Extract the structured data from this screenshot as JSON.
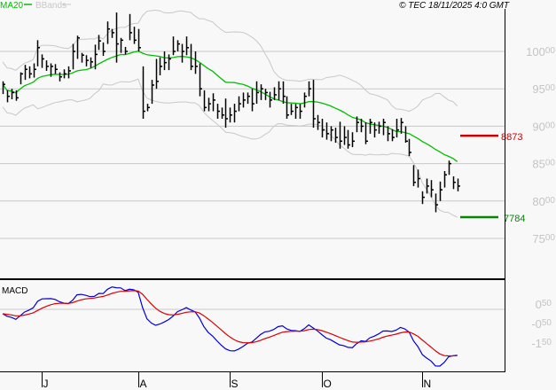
{
  "header": {
    "legend": [
      {
        "label": "MA20",
        "color": "#00c000"
      },
      {
        "label": "BBands",
        "color": "#c8c8c8"
      }
    ],
    "copyright": "© TEC 18/11/2025 4:0 GMT"
  },
  "chart_data": [
    {
      "type": "ohlc",
      "panel": "price",
      "y_ticks": [
        10000,
        9500,
        9000,
        8500,
        8000,
        7500
      ],
      "y_tick_labels": [
        "10000",
        "9500",
        "9000",
        "8500",
        "8000",
        "7500"
      ],
      "ylim": [
        7000,
        10600
      ],
      "grid": true,
      "overlays": [
        "MA20",
        "BBands"
      ],
      "bar_fields": [
        "high",
        "low",
        "close"
      ],
      "bars": [
        [
          9600,
          9430,
          9560
        ],
        [
          9480,
          9320,
          9400
        ],
        [
          9500,
          9360,
          9450
        ],
        [
          9480,
          9340,
          9380
        ],
        [
          9720,
          9560,
          9700
        ],
        [
          9820,
          9620,
          9760
        ],
        [
          9800,
          9640,
          9700
        ],
        [
          9840,
          9650,
          9760
        ],
        [
          10150,
          9800,
          10050
        ],
        [
          9960,
          9780,
          9900
        ],
        [
          9880,
          9740,
          9800
        ],
        [
          9840,
          9660,
          9800
        ],
        [
          9830,
          9700,
          9760
        ],
        [
          9720,
          9600,
          9660
        ],
        [
          9760,
          9640,
          9700
        ],
        [
          9800,
          9640,
          9740
        ],
        [
          10100,
          9760,
          10000
        ],
        [
          10210,
          9900,
          10180
        ],
        [
          9980,
          9850,
          9950
        ],
        [
          9950,
          9800,
          9880
        ],
        [
          9920,
          9780,
          9860
        ],
        [
          10090,
          9760,
          9960
        ],
        [
          10220,
          10020,
          10140
        ],
        [
          10120,
          9940,
          10000
        ],
        [
          10400,
          10100,
          10300
        ],
        [
          10300,
          10180,
          10250
        ],
        [
          10520,
          9850,
          10100
        ],
        [
          10180,
          9980,
          10150
        ],
        [
          10060,
          9960,
          10000
        ],
        [
          10500,
          10150,
          10250
        ],
        [
          10330,
          10100,
          10150
        ],
        [
          10300,
          10000,
          10050
        ],
        [
          9800,
          9100,
          9200
        ],
        [
          9300,
          9200,
          9250
        ],
        [
          9620,
          9300,
          9550
        ],
        [
          9900,
          9500,
          9600
        ],
        [
          9920,
          9680,
          9800
        ],
        [
          10000,
          9750,
          9850
        ],
        [
          9960,
          9750,
          9900
        ],
        [
          10200,
          9950,
          10000
        ],
        [
          10150,
          10000,
          10100
        ],
        [
          10100,
          9850,
          10000
        ],
        [
          10200,
          9950,
          10050
        ],
        [
          10100,
          9750,
          9800
        ],
        [
          10000,
          9700,
          9800
        ],
        [
          9840,
          9400,
          9500
        ],
        [
          9480,
          9200,
          9250
        ],
        [
          9380,
          9200,
          9300
        ],
        [
          9440,
          9200,
          9350
        ],
        [
          9300,
          9100,
          9200
        ],
        [
          9250,
          9100,
          9150
        ],
        [
          9370,
          8980,
          9100
        ],
        [
          9250,
          9050,
          9150
        ],
        [
          9300,
          9050,
          9200
        ],
        [
          9400,
          9200,
          9300
        ],
        [
          9450,
          9250,
          9350
        ],
        [
          9450,
          9300,
          9400
        ],
        [
          9500,
          9200,
          9300
        ],
        [
          9600,
          9300,
          9450
        ],
        [
          9560,
          9350,
          9500
        ],
        [
          9500,
          9350,
          9450
        ],
        [
          9460,
          9250,
          9350
        ],
        [
          9520,
          9350,
          9420
        ],
        [
          9600,
          9350,
          9500
        ],
        [
          9600,
          9300,
          9400
        ],
        [
          9400,
          9100,
          9150
        ],
        [
          9300,
          9150,
          9200
        ],
        [
          9300,
          9100,
          9250
        ],
        [
          9300,
          9100,
          9200
        ],
        [
          9450,
          9250,
          9400
        ],
        [
          9600,
          9400,
          9500
        ],
        [
          9620,
          8980,
          9100
        ],
        [
          9150,
          8950,
          9050
        ],
        [
          9100,
          8850,
          8950
        ],
        [
          9050,
          8820,
          8900
        ],
        [
          9000,
          8800,
          8950
        ],
        [
          8980,
          8780,
          8850
        ],
        [
          9060,
          8700,
          8800
        ],
        [
          9000,
          8750,
          8850
        ],
        [
          8950,
          8700,
          8750
        ],
        [
          8920,
          8720,
          8800
        ],
        [
          9130,
          8920,
          9050
        ],
        [
          9100,
          8920,
          9000
        ],
        [
          9050,
          8760,
          8800
        ],
        [
          9100,
          8900,
          9050
        ],
        [
          9050,
          8850,
          8950
        ],
        [
          9060,
          8900,
          9000
        ],
        [
          9100,
          8880,
          9050
        ],
        [
          9000,
          8800,
          8900
        ],
        [
          8960,
          8800,
          8850
        ],
        [
          9100,
          8850,
          8950
        ],
        [
          9110,
          8900,
          9050
        ],
        [
          9000,
          8780,
          8800
        ],
        [
          8830,
          8600,
          8650
        ],
        [
          8480,
          8200,
          8250
        ],
        [
          8420,
          8180,
          8300
        ],
        [
          8130,
          7960,
          8050
        ],
        [
          8300,
          8100,
          8200
        ],
        [
          8280,
          8050,
          8150
        ],
        [
          8100,
          7850,
          7950
        ],
        [
          8260,
          8000,
          8150
        ],
        [
          8400,
          8180,
          8350
        ],
        [
          8540,
          8350,
          8500
        ],
        [
          8330,
          8160,
          8250
        ],
        [
          8300,
          8130,
          8200
        ]
      ],
      "levels": [
        {
          "value": 8873,
          "label": "8873",
          "color": "#cc0000"
        },
        {
          "value": 7784,
          "label": "7784",
          "color": "#008800"
        }
      ],
      "colors": {
        "bars": "#000000",
        "ma": "#00c000",
        "bbands": "#c8c8c8",
        "grid": "#c8c8c8"
      }
    },
    {
      "type": "line",
      "panel": "indicator",
      "title": "MACD",
      "y_ticks": [
        50,
        -50,
        -150
      ],
      "y_tick_labels": [
        "050",
        "-050",
        "-150"
      ],
      "ylim": [
        -300,
        170
      ],
      "series_colors": {
        "macd": "#0000dd",
        "signal": "#dd0000"
      }
    }
  ],
  "x_axis": {
    "month_labels": [
      "J",
      "A",
      "S",
      "O",
      "N"
    ],
    "month_bar_index": [
      9,
      31,
      52,
      73,
      96
    ]
  }
}
